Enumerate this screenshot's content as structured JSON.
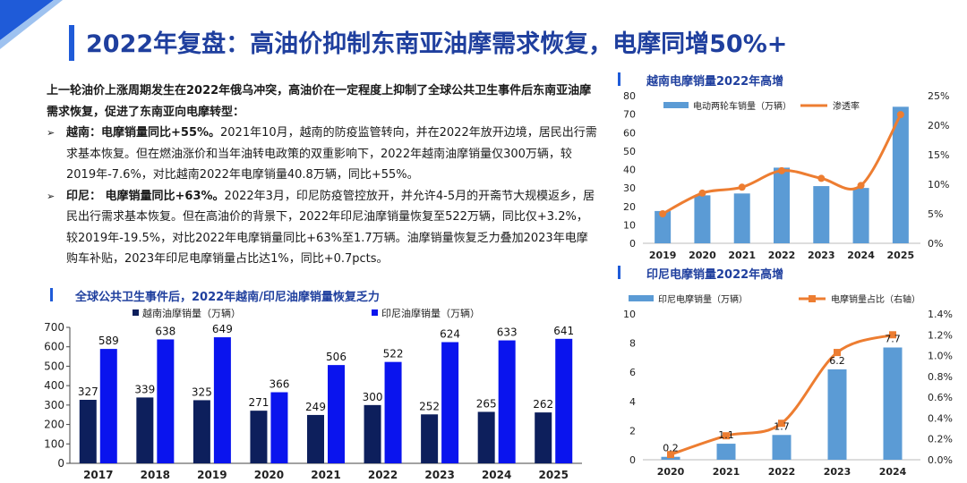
{
  "page": {
    "title": "2022年复盘：高油价抑制东南亚油摩需求恢复，电摩同增50%+",
    "intro": "上一轮油价上涨周期发生在2022年俄乌冲突，高油价在一定程度上抑制了全球公共卫生事件后东南亚油摩需求恢复，促进了东南亚向电摩转型：",
    "bullets": [
      {
        "marker": "➢",
        "lead": "越南：电摩销量同比+55%。",
        "body": "2021年10月，越南的防疫监管转向，并在2022年放开边境，居民出行需求基本恢复。但在燃油涨价和当年油转电政策的双重影响下，2022年越南油摩销量仅300万辆，较2019年-7.6%，对比越南2022年电摩销量40.8万辆，同比+55%。"
      },
      {
        "marker": "➢",
        "lead": "印尼： 电摩销量同比+63%。",
        "body": "2022年3月，印尼防疫管控放开，并允许4-5月的开斋节大规模返乡，居民出行需求基本恢复。但在高油价的背景下，2022年印尼油摩销量恢复至522万辆，同比仅+3.2%，较2019年-19.5%，对比2022年电摩销量同比+63%至1.7万辆。油摩销量恢复乏力叠加2023年电摩购车补贴，2023年印尼电摩销量占比达1%，同比+0.7pcts。"
      }
    ]
  },
  "chart_data": [
    {
      "type": "bar",
      "title": "全球公共卫生事件后，2022年越南/印尼油摩销量恢复乏力",
      "categories": [
        "2017",
        "2018",
        "2019",
        "2020",
        "2021",
        "2022",
        "2023",
        "2024",
        "2025"
      ],
      "series": [
        {
          "name": "越南油摩销量（万辆）",
          "values": [
            327,
            339,
            325,
            271,
            249,
            300,
            252,
            265,
            262
          ],
          "color": "#0d1f5c"
        },
        {
          "name": "印尼油摩销量（万辆）",
          "values": [
            589,
            638,
            649,
            366,
            506,
            522,
            624,
            633,
            641
          ],
          "color": "#0a14ee"
        }
      ],
      "yticks": [
        "0",
        "100",
        "200",
        "300",
        "400",
        "500",
        "600",
        "700"
      ],
      "ylim": [
        0,
        700
      ],
      "legend": "top",
      "grid": false
    },
    {
      "type": "bar+line",
      "title": "越南电摩销量2022年高增",
      "categories": [
        "2019",
        "2020",
        "2021",
        "2022",
        "2023",
        "2024",
        "2025"
      ],
      "series": [
        {
          "name": "电动两轮车销量（万辆）",
          "axis": "left",
          "kind": "bar",
          "values": [
            17.5,
            26,
            27,
            41,
            31,
            30,
            74
          ],
          "color": "#5b9bd5"
        },
        {
          "name": "渗透率",
          "axis": "right",
          "kind": "line",
          "values": [
            0.05,
            0.085,
            0.095,
            0.123,
            0.11,
            0.098,
            0.218
          ],
          "color": "#ed7d31"
        }
      ],
      "yticks_left": [
        "0",
        "10",
        "20",
        "30",
        "40",
        "50",
        "60",
        "70",
        "80"
      ],
      "yticks_right": [
        "0%",
        "5%",
        "10%",
        "15%",
        "20%",
        "25%"
      ],
      "ylim_left": [
        0,
        80
      ],
      "ylim_right": [
        0,
        0.25
      ],
      "legend": "top",
      "grid": false
    },
    {
      "type": "bar+line",
      "title": "印尼电摩销量2022年高增",
      "categories": [
        "2020",
        "2021",
        "2022",
        "2023",
        "2024"
      ],
      "series": [
        {
          "name": "印尼电摩销量（万辆）",
          "axis": "left",
          "kind": "bar",
          "values": [
            0.2,
            1.1,
            1.7,
            6.2,
            7.7
          ],
          "color": "#5b9bd5"
        },
        {
          "name": "电摩销量占比（右轴）",
          "axis": "right",
          "kind": "line",
          "values": [
            0.0005,
            0.0023,
            0.0035,
            0.0103,
            0.012
          ],
          "color": "#ed7d31"
        }
      ],
      "labels": [
        "0.2",
        "1.1",
        "1.7",
        "6.2",
        "7.7"
      ],
      "yticks_left": [
        "0",
        "2",
        "4",
        "6",
        "8",
        "10"
      ],
      "yticks_right": [
        "0.0%",
        "0.2%",
        "0.4%",
        "0.6%",
        "0.8%",
        "1.0%",
        "1.2%",
        "1.4%"
      ],
      "ylim_left": [
        0,
        10
      ],
      "ylim_right": [
        0,
        0.014
      ],
      "legend": "top",
      "grid": false
    }
  ]
}
